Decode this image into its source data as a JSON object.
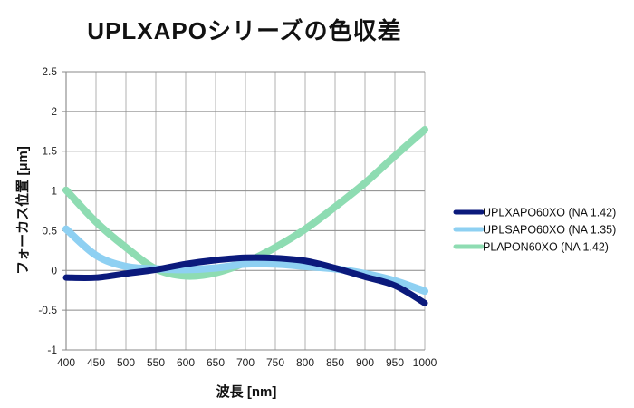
{
  "chart_data": {
    "type": "line",
    "title": "UPLXAPOシリーズの色収差",
    "xlabel": "波長 [nm]",
    "ylabel": "フォーカス位置 [μm]",
    "xlim": [
      400,
      1000
    ],
    "ylim": [
      -1,
      2.5
    ],
    "xticks": [
      400,
      450,
      500,
      550,
      600,
      650,
      700,
      750,
      800,
      850,
      900,
      950,
      1000
    ],
    "yticks": [
      -1,
      -0.5,
      0,
      0.5,
      1,
      1.5,
      2,
      2.5
    ],
    "ytick_labels": [
      "-1",
      "-0.5",
      "0",
      "0.5",
      "1",
      "1.5",
      "2",
      "2.5"
    ],
    "grid": true,
    "legend_position": "right",
    "x": [
      400,
      450,
      500,
      550,
      600,
      650,
      700,
      750,
      800,
      850,
      900,
      950,
      1000
    ],
    "series": [
      {
        "name": "UPLXAPO60XO (NA 1.42)",
        "color": "#0b1a7c",
        "values": [
          -0.09,
          -0.09,
          -0.04,
          0.01,
          0.08,
          0.13,
          0.16,
          0.155,
          0.12,
          0.03,
          -0.08,
          -0.19,
          -0.41
        ]
      },
      {
        "name": "UPLSAPO60XO (NA 1.35)",
        "color": "#8ed0f2",
        "values": [
          0.52,
          0.19,
          0.05,
          0.02,
          0.01,
          0.03,
          0.08,
          0.08,
          0.05,
          0.02,
          -0.04,
          -0.13,
          -0.26
        ]
      },
      {
        "name": "PLAPON60XO (NA 1.42)",
        "color": "#8edcb2",
        "values": [
          1.01,
          0.61,
          0.29,
          0.02,
          -0.07,
          -0.03,
          0.1,
          0.29,
          0.52,
          0.8,
          1.1,
          1.44,
          1.77
        ]
      }
    ]
  }
}
